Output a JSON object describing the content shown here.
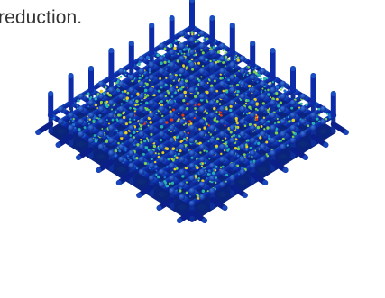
{
  "caption": {
    "text": "reduction."
  },
  "figure": {
    "subject": "lattice-structure-stress-contour",
    "colors": {
      "background": "#ffffff",
      "caption_text": "#333333",
      "low_stress": "#0a1f9a",
      "mid_low": "#1e6fd0",
      "mid": "#27b3b0",
      "mid_high": "#7fd24a",
      "high": "#e8d020",
      "peak": "#e33a16"
    }
  }
}
